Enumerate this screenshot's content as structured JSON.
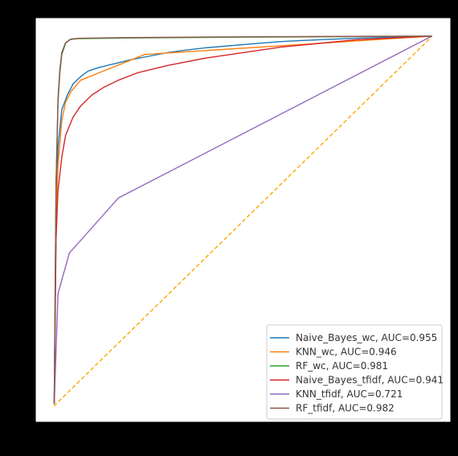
{
  "colors": {
    "figure_background": "#000000",
    "plot_background": "#ffffff",
    "frame": "#000000",
    "diagonal": "#ffa500"
  },
  "chart_data": {
    "type": "line",
    "title": "",
    "xlabel": "",
    "ylabel": "",
    "xlim": [
      -0.05,
      1.05
    ],
    "ylim": [
      -0.05,
      1.05
    ],
    "grid": false,
    "legend_position": "lower-right",
    "diagonal": {
      "style": "dashed",
      "x": [
        0,
        1
      ],
      "y": [
        0,
        1
      ]
    },
    "series": [
      {
        "name": "Naive_Bayes_wc, AUC=0.955",
        "color": "#1f77b4",
        "points": [
          [
            0,
            0
          ],
          [
            0.005,
            0.5
          ],
          [
            0.01,
            0.7
          ],
          [
            0.02,
            0.8
          ],
          [
            0.035,
            0.84
          ],
          [
            0.05,
            0.87
          ],
          [
            0.07,
            0.89
          ],
          [
            0.09,
            0.905
          ],
          [
            0.12,
            0.915
          ],
          [
            0.16,
            0.925
          ],
          [
            0.2,
            0.935
          ],
          [
            0.25,
            0.945
          ],
          [
            0.3,
            0.955
          ],
          [
            0.35,
            0.962
          ],
          [
            0.4,
            0.968
          ],
          [
            0.5,
            0.977
          ],
          [
            0.6,
            0.985
          ],
          [
            0.7,
            0.99
          ],
          [
            0.8,
            0.994
          ],
          [
            0.9,
            0.997
          ],
          [
            1,
            1
          ]
        ]
      },
      {
        "name": "KNN_wc, AUC=0.946",
        "color": "#ff7f0e",
        "points": [
          [
            0,
            0
          ],
          [
            0.005,
            0.5
          ],
          [
            0.01,
            0.65
          ],
          [
            0.02,
            0.77
          ],
          [
            0.03,
            0.82
          ],
          [
            0.045,
            0.85
          ],
          [
            0.07,
            0.88
          ],
          [
            0.24,
            0.95
          ],
          [
            1,
            1
          ]
        ]
      },
      {
        "name": "RF_wc, AUC=0.981",
        "color": "#2ca02c",
        "points": [
          [
            0,
            0
          ],
          [
            0.005,
            0.6
          ],
          [
            0.01,
            0.82
          ],
          [
            0.015,
            0.9
          ],
          [
            0.02,
            0.95
          ],
          [
            0.03,
            0.98
          ],
          [
            0.04,
            0.99
          ],
          [
            0.06,
            0.993
          ],
          [
            0.2,
            0.995
          ],
          [
            0.5,
            0.997
          ],
          [
            1,
            1
          ]
        ]
      },
      {
        "name": "Naive_Bayes_tfidf, AUC=0.941",
        "color": "#d62728",
        "points": [
          [
            0,
            0
          ],
          [
            0.005,
            0.45
          ],
          [
            0.01,
            0.58
          ],
          [
            0.02,
            0.67
          ],
          [
            0.03,
            0.73
          ],
          [
            0.05,
            0.78
          ],
          [
            0.07,
            0.81
          ],
          [
            0.1,
            0.84
          ],
          [
            0.13,
            0.86
          ],
          [
            0.17,
            0.88
          ],
          [
            0.22,
            0.9
          ],
          [
            0.3,
            0.92
          ],
          [
            0.4,
            0.94
          ],
          [
            0.5,
            0.955
          ],
          [
            0.6,
            0.97
          ],
          [
            0.7,
            0.98
          ],
          [
            0.8,
            0.99
          ],
          [
            0.9,
            0.995
          ],
          [
            1,
            1
          ]
        ]
      },
      {
        "name": "KNN_tfidf, AUC=0.721",
        "color": "#9467bd",
        "points": [
          [
            0,
            0
          ],
          [
            0.01,
            0.3
          ],
          [
            0.04,
            0.41
          ],
          [
            0.17,
            0.56
          ],
          [
            1,
            1
          ]
        ]
      },
      {
        "name": "RF_tfidf, AUC=0.982",
        "color": "#8c564b",
        "points": [
          [
            0,
            0
          ],
          [
            0.005,
            0.6
          ],
          [
            0.01,
            0.83
          ],
          [
            0.015,
            0.91
          ],
          [
            0.02,
            0.955
          ],
          [
            0.03,
            0.982
          ],
          [
            0.045,
            0.992
          ],
          [
            0.07,
            0.994
          ],
          [
            0.2,
            0.996
          ],
          [
            0.5,
            0.998
          ],
          [
            1,
            1
          ]
        ]
      }
    ]
  }
}
